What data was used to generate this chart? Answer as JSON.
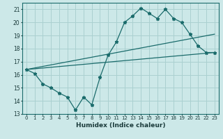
{
  "xlabel": "Humidex (Indice chaleur)",
  "ylabel": "",
  "bg_color": "#cce8e8",
  "grid_color": "#aad0d0",
  "line_color": "#1a6b6b",
  "xlim": [
    -0.5,
    23.5
  ],
  "ylim": [
    13,
    21.5
  ],
  "xticks": [
    0,
    1,
    2,
    3,
    4,
    5,
    6,
    7,
    8,
    9,
    10,
    11,
    12,
    13,
    14,
    15,
    16,
    17,
    18,
    19,
    20,
    21,
    22,
    23
  ],
  "yticks": [
    13,
    14,
    15,
    16,
    17,
    18,
    19,
    20,
    21
  ],
  "line1_x": [
    0,
    1,
    2,
    3,
    4,
    5,
    6,
    7,
    8,
    9,
    10,
    11,
    12,
    13,
    14,
    15,
    16,
    17,
    18,
    19,
    20,
    21,
    22,
    23
  ],
  "line1_y": [
    16.4,
    16.1,
    15.3,
    15.0,
    14.6,
    14.3,
    13.3,
    14.3,
    13.7,
    15.8,
    17.5,
    18.5,
    20.0,
    20.5,
    21.1,
    20.7,
    20.3,
    21.0,
    20.3,
    20.0,
    19.1,
    18.2,
    17.7,
    17.7
  ],
  "line2_x": [
    0,
    23
  ],
  "line2_y": [
    16.4,
    19.1
  ],
  "line3_x": [
    0,
    23
  ],
  "line3_y": [
    16.4,
    17.7
  ],
  "marker": "*",
  "markersize": 3.5
}
